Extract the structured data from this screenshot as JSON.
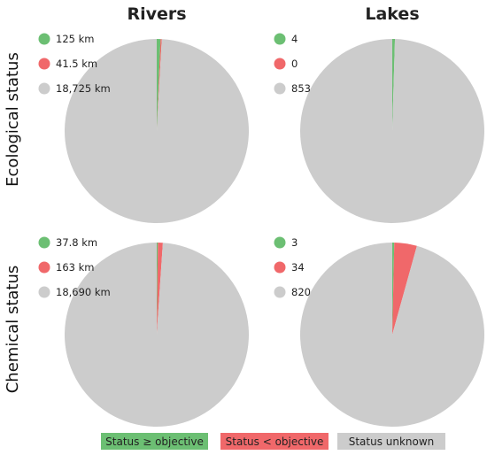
{
  "chart_data": {
    "type": "pie",
    "column_titles": [
      "Rivers",
      "Lakes"
    ],
    "row_titles": [
      "Ecological status",
      "Chemical status"
    ],
    "categories": [
      "Status ≥ objective",
      "Status < objective",
      "Status unknown"
    ],
    "colors": [
      "#6cbf73",
      "#f0686a",
      "#cccccc"
    ],
    "charts": [
      {
        "row": "Ecological status",
        "column": "Rivers",
        "values": [
          125,
          41.5,
          18725
        ],
        "labels": [
          "125 km",
          "41.5 km",
          "18,725 km"
        ]
      },
      {
        "row": "Ecological status",
        "column": "Lakes",
        "values": [
          4,
          0,
          853
        ],
        "labels": [
          "4",
          "0",
          "853"
        ]
      },
      {
        "row": "Chemical status",
        "column": "Rivers",
        "values": [
          37.8,
          163,
          18690
        ],
        "labels": [
          "37.8 km",
          "163 km",
          "18,690 km"
        ]
      },
      {
        "row": "Chemical status",
        "column": "Lakes",
        "values": [
          3,
          34,
          820
        ],
        "labels": [
          "3",
          "34",
          "820"
        ]
      }
    ]
  }
}
